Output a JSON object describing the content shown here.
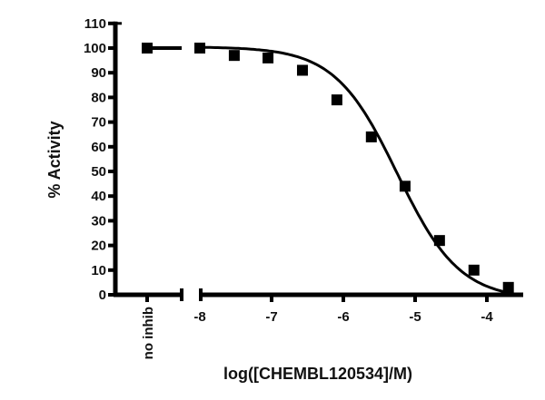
{
  "chart_data": {
    "type": "scatter",
    "title": "",
    "xlabel": "log([CHEMBL120534]/M)",
    "ylabel": "% Activity",
    "ylim": [
      0,
      110
    ],
    "xlim": [
      -8,
      -3.5
    ],
    "y_ticks": [
      0,
      10,
      20,
      30,
      40,
      50,
      60,
      70,
      80,
      90,
      100,
      110
    ],
    "x_ticks": [
      -8,
      -7,
      -6,
      -5,
      -4
    ],
    "x_tick_labels": [
      "-8",
      "-7",
      "-6",
      "-5",
      "-4"
    ],
    "x_break": true,
    "categorical_x_label": "no inhib",
    "legend": null,
    "grid": false,
    "series": [
      {
        "name": "no inhib",
        "marker": "square",
        "points": [
          {
            "x": "no inhib",
            "y": 100
          }
        ]
      },
      {
        "name": "CHEMBL120534",
        "marker": "square",
        "fit": "sigmoidal dose-response curve",
        "x": [
          -8.0,
          -7.52,
          -7.05,
          -6.57,
          -6.09,
          -5.61,
          -5.14,
          -4.66,
          -4.18,
          -3.7
        ],
        "y": [
          100,
          97,
          96,
          91,
          79,
          64,
          44,
          22,
          10,
          3
        ]
      }
    ]
  }
}
